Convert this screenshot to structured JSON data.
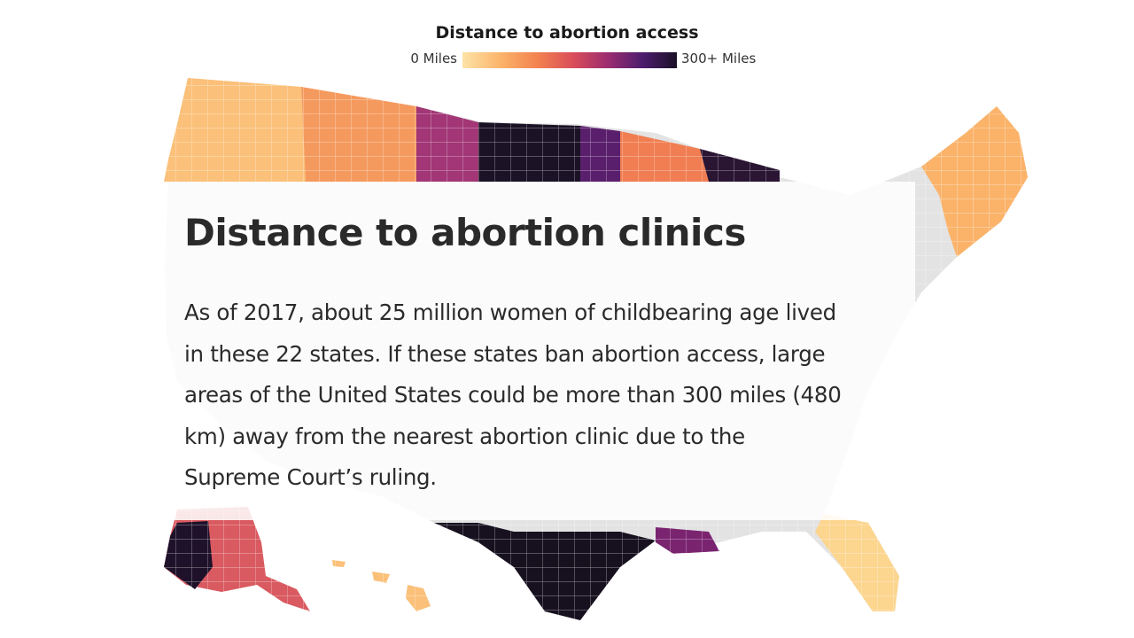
{
  "legend": {
    "title": "Distance to abortion access",
    "min_label": "0 Miles",
    "max_label": "300+ Miles",
    "color_scale": [
      "#fde3a6",
      "#fbb36a",
      "#f3824f",
      "#d94c5a",
      "#9b2c70",
      "#4d1d6e",
      "#1a1027"
    ]
  },
  "card": {
    "title": "Distance to abortion clinics",
    "body_lines": [
      "As of 2017, about 25 million women of childbearing age lived",
      "in these 22 states. If these states ban abortion access, large",
      "areas of the United States could be more than 300 miles (480",
      "km) away from the nearest abortion clinic due to the",
      "Supreme Court’s ruling."
    ]
  },
  "map": {
    "subject": "United States counties shaded by distance to nearest abortion clinic",
    "insets": [
      "Alaska",
      "Hawaii"
    ]
  }
}
